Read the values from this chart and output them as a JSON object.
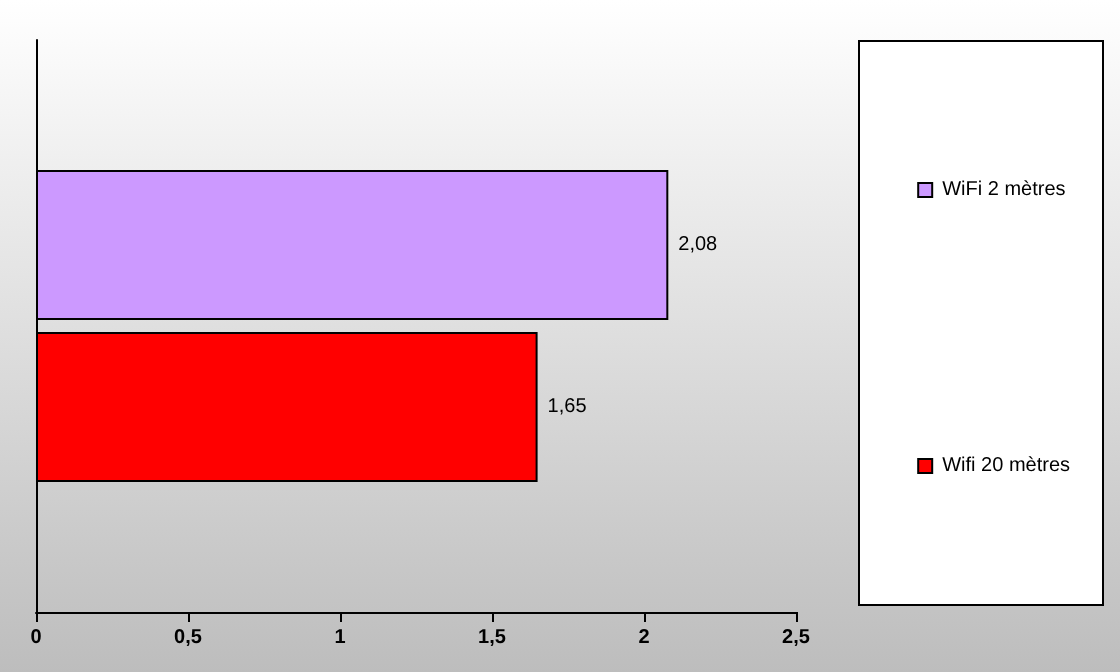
{
  "chart_data": {
    "type": "bar",
    "orientation": "horizontal",
    "categories": [
      null
    ],
    "series": [
      {
        "name": "WiFi 2 mètres",
        "color": "#cc99ff",
        "values": [
          2.08
        ],
        "value_labels": [
          "2,08"
        ]
      },
      {
        "name": "Wifi 20 mètres",
        "color": "#ff0000",
        "values": [
          1.65
        ],
        "value_labels": [
          "1,65"
        ]
      }
    ],
    "xlim": [
      0,
      2.5
    ],
    "xticks": [
      {
        "value": 0,
        "label": "0"
      },
      {
        "value": 0.5,
        "label": "0,5"
      },
      {
        "value": 1,
        "label": "1"
      },
      {
        "value": 1.5,
        "label": "1,5"
      },
      {
        "value": 2,
        "label": "2"
      },
      {
        "value": 2.5,
        "label": "2,5"
      }
    ],
    "grid": false,
    "legend": "right"
  }
}
